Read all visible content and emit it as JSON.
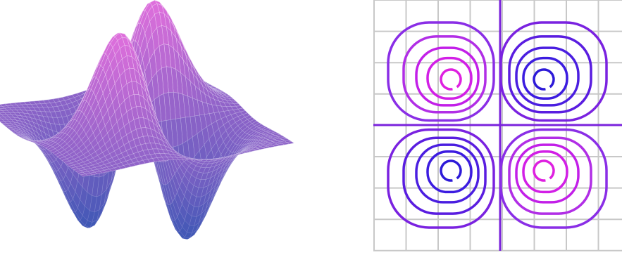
{
  "chart_data": [
    {
      "type": "surface"
    },
    {
      "type": "contour"
    }
  ]
}
